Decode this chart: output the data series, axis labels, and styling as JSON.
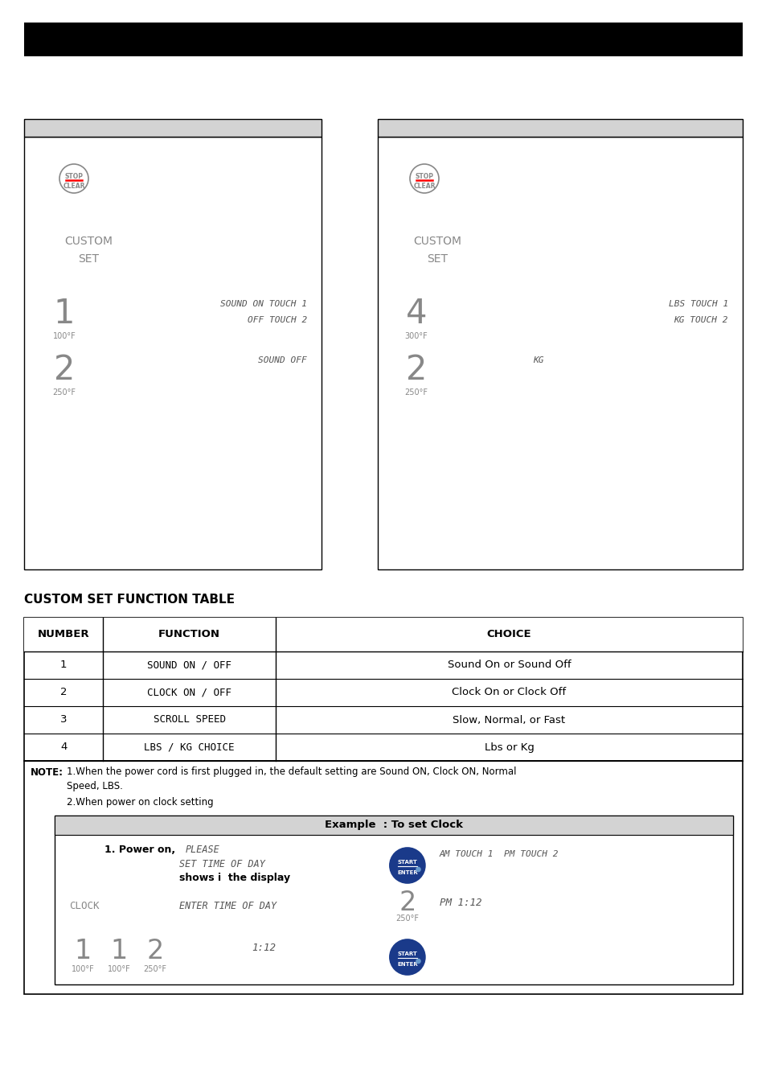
{
  "bg_color": "#ffffff",
  "gray_color": "#888888",
  "light_gray": "#cccccc",
  "panel_gray": "#d3d3d3",
  "display_font_color": "#888888",
  "lcd_color": "#555555",
  "table_title": "CUSTOM SET FUNCTION TABLE",
  "table_headers": [
    "NUMBER",
    "FUNCTION",
    "CHOICE"
  ],
  "table_rows": [
    [
      "1",
      "SOUND ON / OFF",
      "Sound On or Sound Off"
    ],
    [
      "2",
      "CLOCK ON / OFF",
      "Clock On or Clock Off"
    ],
    [
      "3",
      "SCROLL SPEED",
      "Slow, Normal, or Fast"
    ],
    [
      "4",
      "LBS / KG CHOICE",
      "Lbs or Kg"
    ]
  ],
  "example_title": "Example  : To set Clock"
}
